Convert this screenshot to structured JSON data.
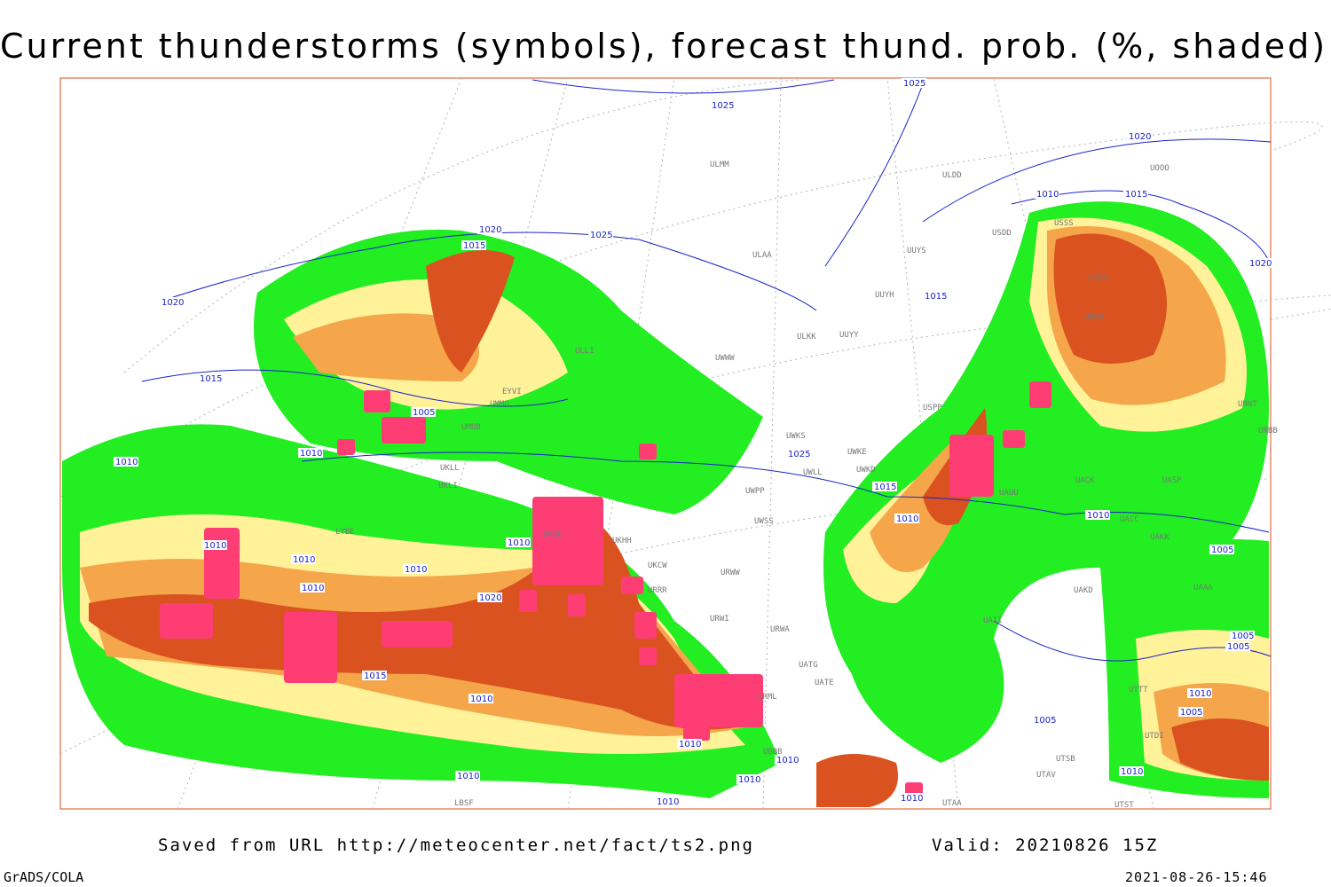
{
  "title": "Current thunderstorms (symbols), forecast thund. prob. (%, shaded)",
  "footer": {
    "saved": "Saved from URL http://meteocenter.net/fact/ts2.png",
    "valid": "Valid: 20210826 15Z",
    "brand": "GrADS/COLA",
    "timestamp": "2021-08-26-15:46"
  },
  "colors": {
    "prob_low": "#22ee22",
    "prob_mid": "#fff299",
    "prob_high": "#f5a64b",
    "prob_very_high": "#d9521f",
    "storm_symbol": "#ff3d75",
    "isobar": "#1a22c8",
    "coast": "#a0a0a0",
    "grid": "#b0b0b0"
  },
  "isobar_labels": [
    {
      "v": "1025"
    },
    {
      "v": "1025"
    },
    {
      "v": "1020"
    },
    {
      "v": "1015"
    },
    {
      "v": "1025"
    },
    {
      "v": "1020"
    },
    {
      "v": "1015"
    },
    {
      "v": "1005"
    },
    {
      "v": "1010"
    },
    {
      "v": "1010"
    },
    {
      "v": "1010"
    },
    {
      "v": "1010"
    },
    {
      "v": "1010"
    },
    {
      "v": "1010"
    },
    {
      "v": "1010"
    },
    {
      "v": "1010"
    },
    {
      "v": "1010"
    },
    {
      "v": "1020"
    },
    {
      "v": "1015"
    },
    {
      "v": "1025"
    },
    {
      "v": "1015"
    },
    {
      "v": "1010"
    },
    {
      "v": "1010"
    },
    {
      "v": "1020"
    },
    {
      "v": "1015"
    },
    {
      "v": "1020"
    },
    {
      "v": "1010"
    },
    {
      "v": "1005"
    },
    {
      "v": "1005"
    },
    {
      "v": "1005"
    },
    {
      "v": "1005"
    },
    {
      "v": "1010"
    },
    {
      "v": "1005"
    },
    {
      "v": "1010"
    },
    {
      "v": "1010"
    },
    {
      "v": "1010"
    },
    {
      "v": "1010"
    },
    {
      "v": "1010"
    },
    {
      "v": "1010"
    },
    {
      "v": "1015"
    }
  ],
  "stations": [
    "ULMM",
    "ULAA",
    "ULLI",
    "EYVI",
    "UMMG",
    "UMBB",
    "UKLL",
    "UKLI",
    "LYBE",
    "UKOO",
    "UKHH",
    "UKCW",
    "URRR",
    "URWI",
    "URWA",
    "UATG",
    "UATE",
    "URML",
    "UBBB",
    "ULKK",
    "UUYY",
    "UWWW",
    "UWKS",
    "UWKE",
    "UWKD",
    "UWLL",
    "UWPP",
    "UWSS",
    "URWW",
    "UUYS",
    "UUYH",
    "ULDD",
    "USPP",
    "UAUU",
    "UACK",
    "UASP",
    "UACC",
    "UAKK",
    "UAKD",
    "UAAA",
    "UAII",
    "UTTT",
    "UTDI",
    "UTSB",
    "UTAV",
    "UTAA",
    "USSS",
    "USRR",
    "USMM",
    "UNNT",
    "UNBB",
    "UOOO",
    "USDD",
    "UTST",
    "LBSF"
  ]
}
